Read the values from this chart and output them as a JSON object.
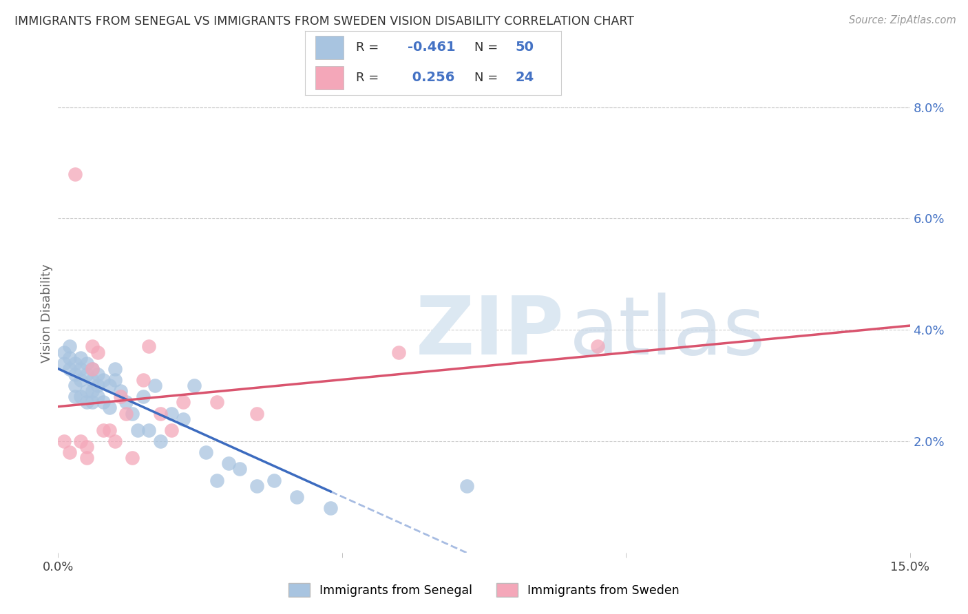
{
  "title": "IMMIGRANTS FROM SENEGAL VS IMMIGRANTS FROM SWEDEN VISION DISABILITY CORRELATION CHART",
  "source": "Source: ZipAtlas.com",
  "ylabel": "Vision Disability",
  "xlim": [
    0.0,
    0.15
  ],
  "ylim": [
    0.0,
    0.086
  ],
  "senegal_R": -0.461,
  "senegal_N": 50,
  "sweden_R": 0.256,
  "sweden_N": 24,
  "senegal_color": "#a8c4e0",
  "sweden_color": "#f4a7b9",
  "senegal_line_color": "#3c6bbf",
  "sweden_line_color": "#d9546e",
  "background_color": "#ffffff",
  "grid_color": "#cccccc",
  "right_axis_color": "#4472c4",
  "senegal_x": [
    0.001,
    0.001,
    0.002,
    0.002,
    0.002,
    0.003,
    0.003,
    0.003,
    0.003,
    0.004,
    0.004,
    0.004,
    0.004,
    0.005,
    0.005,
    0.005,
    0.005,
    0.006,
    0.006,
    0.006,
    0.006,
    0.007,
    0.007,
    0.007,
    0.008,
    0.008,
    0.009,
    0.009,
    0.01,
    0.01,
    0.011,
    0.012,
    0.013,
    0.014,
    0.015,
    0.016,
    0.017,
    0.018,
    0.02,
    0.022,
    0.024,
    0.026,
    0.028,
    0.03,
    0.032,
    0.035,
    0.038,
    0.042,
    0.048,
    0.072
  ],
  "senegal_y": [
    0.036,
    0.034,
    0.037,
    0.035,
    0.033,
    0.034,
    0.032,
    0.03,
    0.028,
    0.035,
    0.033,
    0.031,
    0.028,
    0.034,
    0.032,
    0.029,
    0.027,
    0.033,
    0.031,
    0.029,
    0.027,
    0.032,
    0.03,
    0.028,
    0.031,
    0.027,
    0.03,
    0.026,
    0.033,
    0.031,
    0.029,
    0.027,
    0.025,
    0.022,
    0.028,
    0.022,
    0.03,
    0.02,
    0.025,
    0.024,
    0.03,
    0.018,
    0.013,
    0.016,
    0.015,
    0.012,
    0.013,
    0.01,
    0.008,
    0.012
  ],
  "sweden_x": [
    0.001,
    0.002,
    0.003,
    0.004,
    0.005,
    0.005,
    0.006,
    0.006,
    0.007,
    0.008,
    0.009,
    0.01,
    0.011,
    0.012,
    0.013,
    0.015,
    0.016,
    0.018,
    0.02,
    0.022,
    0.028,
    0.035,
    0.06,
    0.095
  ],
  "sweden_y": [
    0.02,
    0.018,
    0.068,
    0.02,
    0.019,
    0.017,
    0.037,
    0.033,
    0.036,
    0.022,
    0.022,
    0.02,
    0.028,
    0.025,
    0.017,
    0.031,
    0.037,
    0.025,
    0.022,
    0.027,
    0.027,
    0.025,
    0.036,
    0.037
  ],
  "ytick_vals": [
    0.02,
    0.04,
    0.06,
    0.08
  ],
  "ytick_labels": [
    "2.0%",
    "4.0%",
    "6.0%",
    "8.0%"
  ],
  "xtick_vals": [
    0.0,
    0.05,
    0.1,
    0.15
  ],
  "xtick_labels": [
    "0.0%",
    "",
    "",
    "15.0%"
  ]
}
